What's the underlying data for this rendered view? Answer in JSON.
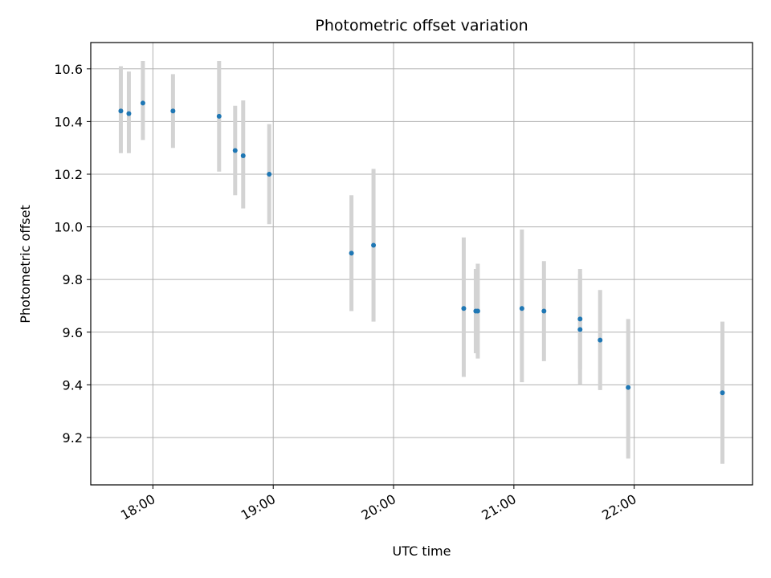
{
  "chart_data": {
    "type": "scatter",
    "title": "Photometric offset variation",
    "xlabel": "UTC time",
    "ylabel": "Photometric offset",
    "grid": true,
    "xlim": [
      "17:29",
      "22:59"
    ],
    "ylim": [
      9.02,
      10.7
    ],
    "x_ticks": [
      "18:00",
      "19:00",
      "20:00",
      "21:00",
      "22:00"
    ],
    "y_ticks": [
      9.2,
      9.4,
      9.6,
      9.8,
      10.0,
      10.2,
      10.4,
      10.6
    ],
    "y_tick_labels": [
      "9.2",
      "9.4",
      "9.6",
      "9.8",
      "10.0",
      "10.2",
      "10.4",
      "10.6"
    ],
    "point_color": "#1f77b4",
    "errorbar_color": "#d3d3d3",
    "points": [
      {
        "x": "17:44",
        "y": 10.44,
        "ylow": 10.28,
        "yhigh": 10.61
      },
      {
        "x": "17:48",
        "y": 10.43,
        "ylow": 10.28,
        "yhigh": 10.59
      },
      {
        "x": "17:55",
        "y": 10.47,
        "ylow": 10.33,
        "yhigh": 10.63
      },
      {
        "x": "18:10",
        "y": 10.44,
        "ylow": 10.3,
        "yhigh": 10.58
      },
      {
        "x": "18:33",
        "y": 10.42,
        "ylow": 10.21,
        "yhigh": 10.63
      },
      {
        "x": "18:41",
        "y": 10.29,
        "ylow": 10.12,
        "yhigh": 10.46
      },
      {
        "x": "18:45",
        "y": 10.27,
        "ylow": 10.07,
        "yhigh": 10.48
      },
      {
        "x": "18:58",
        "y": 10.2,
        "ylow": 10.01,
        "yhigh": 10.39
      },
      {
        "x": "19:39",
        "y": 9.9,
        "ylow": 9.68,
        "yhigh": 10.12
      },
      {
        "x": "19:50",
        "y": 9.93,
        "ylow": 9.64,
        "yhigh": 10.22
      },
      {
        "x": "20:35",
        "y": 9.69,
        "ylow": 9.43,
        "yhigh": 9.96
      },
      {
        "x": "20:41",
        "y": 9.68,
        "ylow": 9.52,
        "yhigh": 9.84
      },
      {
        "x": "20:42",
        "y": 9.68,
        "ylow": 9.5,
        "yhigh": 9.86
      },
      {
        "x": "21:04",
        "y": 9.69,
        "ylow": 9.41,
        "yhigh": 9.99
      },
      {
        "x": "21:15",
        "y": 9.68,
        "ylow": 9.49,
        "yhigh": 9.87
      },
      {
        "x": "21:33",
        "y": 9.65,
        "ylow": 9.46,
        "yhigh": 9.84
      },
      {
        "x": "21:33",
        "y": 9.61,
        "ylow": 9.4,
        "yhigh": 9.82
      },
      {
        "x": "21:43",
        "y": 9.57,
        "ylow": 9.38,
        "yhigh": 9.76
      },
      {
        "x": "21:57",
        "y": 9.39,
        "ylow": 9.12,
        "yhigh": 9.65
      },
      {
        "x": "22:44",
        "y": 9.37,
        "ylow": 9.1,
        "yhigh": 9.64
      }
    ]
  }
}
